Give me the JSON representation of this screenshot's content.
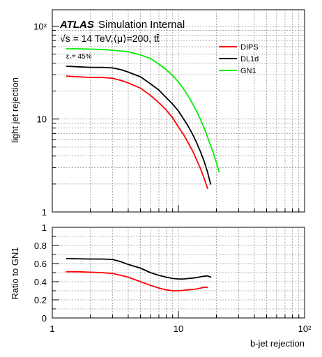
{
  "chart_data": [
    {
      "type": "line",
      "annotations": {
        "atlas": "ATLAS",
        "status": "Simulation Internal",
        "energy": "√s = 14 TeV,⟨μ⟩=200, tt̄",
        "working_point": "ε꜀= 45%"
      },
      "xlabel": "b-jet rejection",
      "ylabel": "light jet rejection",
      "x_scale": "log",
      "y_scale": "log",
      "xlim": [
        1,
        100
      ],
      "ylim": [
        1,
        150
      ],
      "grid": true,
      "legend_position": "top-right",
      "x_tick_labels": [
        "1",
        "10",
        "10²"
      ],
      "y_tick_labels": [
        "1",
        "10",
        "10²"
      ],
      "series": [
        {
          "name": "DIPS",
          "color": "#ff0000",
          "x": [
            1.3,
            1.6,
            2,
            2.5,
            3,
            3.5,
            4,
            5,
            6,
            7,
            8,
            9,
            10,
            11,
            12,
            13,
            14,
            15,
            16,
            17
          ],
          "y": [
            29,
            28.5,
            28,
            28,
            27.5,
            26,
            24.5,
            21.5,
            18,
            15,
            12.5,
            10.3,
            8.2,
            6.8,
            5.5,
            4.5,
            3.6,
            2.9,
            2.3,
            1.8
          ]
        },
        {
          "name": "DL1d",
          "color": "#000000",
          "x": [
            1.3,
            1.6,
            2,
            2.5,
            3,
            3.5,
            4,
            5,
            6,
            7,
            8,
            9,
            10,
            11,
            12,
            13,
            14,
            15,
            16,
            17,
            18
          ],
          "y": [
            37,
            36.5,
            36,
            36,
            35.5,
            34,
            32,
            28.5,
            24,
            20.5,
            17,
            14.5,
            12.2,
            10,
            8.3,
            6.8,
            5.5,
            4.4,
            3.5,
            2.7,
            2
          ]
        },
        {
          "name": "GN1",
          "color": "#00ee00",
          "x": [
            1.3,
            1.6,
            2,
            2.5,
            3,
            3.5,
            4,
            5,
            6,
            7,
            8,
            9,
            10,
            11,
            12,
            13,
            14,
            15,
            16,
            17,
            18,
            19,
            20,
            21
          ],
          "y": [
            57,
            57,
            56.5,
            56,
            55,
            54,
            53,
            49,
            45,
            39,
            34,
            29.5,
            25,
            21,
            17.5,
            14.5,
            12,
            9.8,
            8,
            6.4,
            5.2,
            4.2,
            3.4,
            2.7
          ]
        }
      ]
    },
    {
      "type": "line",
      "xlabel": "b-jet rejection",
      "ylabel": "Ratio to GN1",
      "x_scale": "log",
      "xlim": [
        1,
        100
      ],
      "ylim": [
        0,
        1
      ],
      "grid": true,
      "y_tick_labels": [
        "0",
        "0.2",
        "0.4",
        "0.6",
        "0.8",
        "1"
      ],
      "series": [
        {
          "name": "DIPS",
          "color": "#ff0000",
          "x": [
            1.3,
            1.6,
            2,
            2.5,
            3,
            3.5,
            4,
            5,
            6,
            7,
            8,
            9,
            10,
            11,
            12,
            13,
            14,
            15,
            16,
            17
          ],
          "y": [
            0.51,
            0.51,
            0.505,
            0.5,
            0.49,
            0.47,
            0.45,
            0.4,
            0.36,
            0.33,
            0.31,
            0.3,
            0.3,
            0.305,
            0.31,
            0.315,
            0.32,
            0.33,
            0.34,
            0.335
          ]
        },
        {
          "name": "DL1d",
          "color": "#000000",
          "x": [
            1.3,
            1.6,
            2,
            2.5,
            3,
            3.5,
            4,
            5,
            6,
            7,
            8,
            9,
            10,
            11,
            12,
            13,
            14,
            15,
            16,
            17,
            18
          ],
          "y": [
            0.655,
            0.653,
            0.65,
            0.65,
            0.645,
            0.62,
            0.59,
            0.55,
            0.5,
            0.47,
            0.45,
            0.435,
            0.43,
            0.43,
            0.435,
            0.44,
            0.445,
            0.455,
            0.46,
            0.465,
            0.45
          ]
        }
      ]
    }
  ]
}
